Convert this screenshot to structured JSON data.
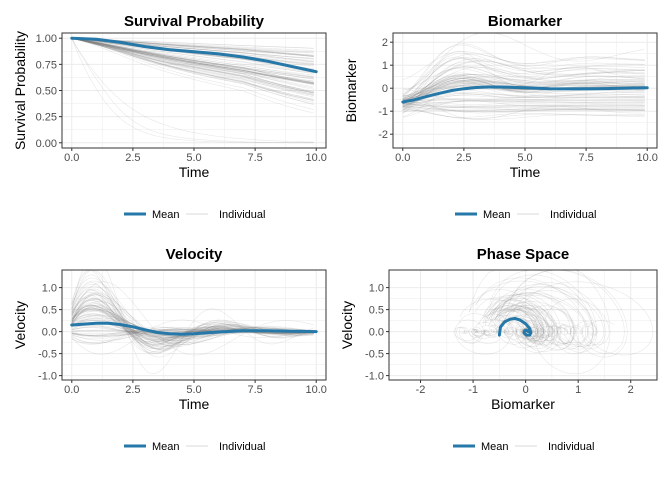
{
  "legend": {
    "mean_label": "Mean",
    "individual_label": "Individual",
    "placement": "bottom"
  },
  "colors": {
    "mean": "#2678a8",
    "individual": "#808080",
    "grid": "#ebebeb",
    "border": "#333333"
  },
  "chart_data": [
    {
      "type": "line",
      "title": "Survival Probability",
      "xlabel": "Time",
      "ylabel": "Survival Probability",
      "xlim": [
        -0.4,
        10.4
      ],
      "ylim": [
        -0.05,
        1.05
      ],
      "xticks": [
        "0.0",
        "2.5",
        "5.0",
        "7.5",
        "10.0"
      ],
      "xtick_values": [
        0,
        2.5,
        5,
        7.5,
        10
      ],
      "yticks": [
        "0.00",
        "0.25",
        "0.50",
        "0.75",
        "1.00"
      ],
      "ytick_values": [
        0,
        0.25,
        0.5,
        0.75,
        1
      ],
      "grid": true,
      "series": [
        {
          "name": "Mean",
          "x": [
            0,
            1,
            2,
            2.5,
            3,
            4,
            5,
            6,
            7,
            7.5,
            8,
            9,
            10
          ],
          "y": [
            1.0,
            0.99,
            0.96,
            0.94,
            0.92,
            0.89,
            0.87,
            0.85,
            0.82,
            0.8,
            0.78,
            0.73,
            0.68
          ]
        },
        {
          "name": "Individual"
        }
      ]
    },
    {
      "type": "line",
      "title": "Biomarker",
      "xlabel": "Time",
      "ylabel": "Biomarker",
      "xlim": [
        -0.4,
        10.4
      ],
      "ylim": [
        -2.6,
        2.4
      ],
      "xticks": [
        "0.0",
        "2.5",
        "5.0",
        "7.5",
        "10.0"
      ],
      "xtick_values": [
        0,
        2.5,
        5,
        7.5,
        10
      ],
      "yticks": [
        "-2",
        "-1",
        "0",
        "1",
        "2"
      ],
      "ytick_values": [
        -2,
        -1,
        0,
        1,
        2
      ],
      "grid": true,
      "series": [
        {
          "name": "Mean",
          "x": [
            0,
            0.5,
            1,
            1.5,
            2,
            2.5,
            3,
            3.5,
            4,
            5,
            6,
            7,
            8,
            9,
            10
          ],
          "y": [
            -0.6,
            -0.5,
            -0.35,
            -0.22,
            -0.1,
            -0.02,
            0.03,
            0.05,
            0.05,
            0.02,
            -0.02,
            -0.03,
            -0.02,
            0,
            0.02
          ]
        },
        {
          "name": "Individual"
        }
      ]
    },
    {
      "type": "line",
      "title": "Velocity",
      "xlabel": "Time",
      "ylabel": "Velocity",
      "xlim": [
        -0.4,
        10.4
      ],
      "ylim": [
        -1.1,
        1.4
      ],
      "xticks": [
        "0.0",
        "2.5",
        "5.0",
        "7.5",
        "10.0"
      ],
      "xtick_values": [
        0,
        2.5,
        5,
        7.5,
        10
      ],
      "yticks": [
        "-1.0",
        "-0.5",
        "0.0",
        "0.5",
        "1.0"
      ],
      "ytick_values": [
        -1,
        -0.5,
        0,
        0.5,
        1
      ],
      "grid": true,
      "series": [
        {
          "name": "Mean",
          "x": [
            0,
            0.5,
            1,
            1.5,
            2,
            2.5,
            3,
            3.5,
            4,
            4.5,
            5,
            5.5,
            6,
            7,
            7.5,
            8,
            9,
            10
          ],
          "y": [
            0.15,
            0.17,
            0.19,
            0.19,
            0.16,
            0.11,
            0.04,
            -0.02,
            -0.05,
            -0.06,
            -0.05,
            -0.03,
            -0.01,
            0.02,
            0.02,
            0.02,
            0.01,
            0.0
          ]
        },
        {
          "name": "Individual"
        }
      ]
    },
    {
      "type": "line",
      "title": "Phase Space",
      "xlabel": "Biomarker",
      "ylabel": "Velocity",
      "xlim": [
        -2.6,
        2.5
      ],
      "ylim": [
        -1.1,
        1.4
      ],
      "xticks": [
        "-2",
        "-1",
        "0",
        "1",
        "2"
      ],
      "xtick_values": [
        -2,
        -1,
        0,
        1,
        2
      ],
      "yticks": [
        "-1.0",
        "-0.5",
        "0.0",
        "0.5",
        "1.0"
      ],
      "ytick_values": [
        -1,
        -0.5,
        0,
        0.5,
        1
      ],
      "grid": true,
      "series": [
        {
          "name": "Mean",
          "x": [
            -0.5,
            -0.48,
            -0.4,
            -0.3,
            -0.2,
            -0.1,
            0.0,
            0.07,
            0.1,
            0.08,
            0.02,
            -0.03,
            -0.02,
            0.02,
            0.05
          ],
          "y": [
            -0.08,
            0.1,
            0.22,
            0.28,
            0.3,
            0.26,
            0.18,
            0.08,
            -0.02,
            -0.08,
            -0.08,
            -0.03,
            0.02,
            0.03,
            0.0
          ]
        },
        {
          "name": "Individual"
        }
      ]
    }
  ]
}
